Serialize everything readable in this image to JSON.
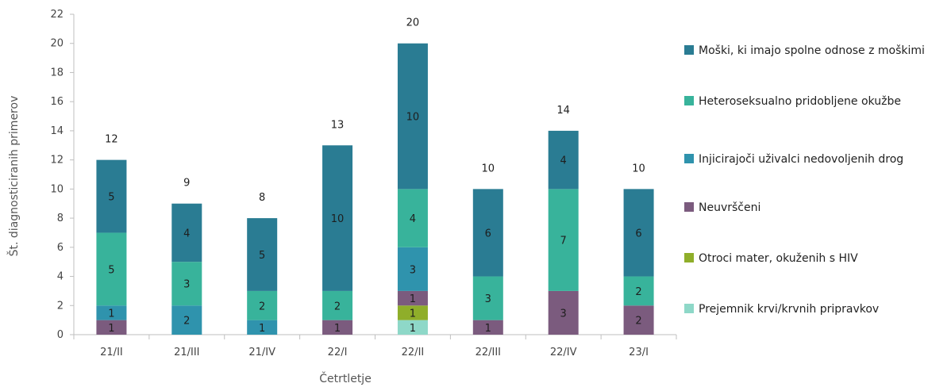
{
  "chart_data": {
    "type": "bar",
    "stacked": true,
    "xlabel": "Četrtletje",
    "ylabel": "Št. diagnosticiranih primerov",
    "ylim": [
      0,
      22
    ],
    "yticks": [
      0,
      2,
      4,
      6,
      8,
      10,
      12,
      14,
      16,
      18,
      20,
      22
    ],
    "grid": false,
    "legend_position": "right",
    "categories": [
      "21/II",
      "21/III",
      "21/IV",
      "22/I",
      "22/II",
      "22/III",
      "22/IV",
      "23/I"
    ],
    "series": [
      {
        "name": "Prejemnik krvi/krvnih pripravkov",
        "color": "#8ed8c8",
        "values": [
          0,
          0,
          0,
          0,
          1,
          0,
          0,
          0
        ]
      },
      {
        "name": "Otroci mater, okuženih s HIV",
        "color": "#8fae2a",
        "values": [
          0,
          0,
          0,
          0,
          1,
          0,
          0,
          0
        ]
      },
      {
        "name": "Neuvrščeni",
        "color": "#7b5b7e",
        "values": [
          1,
          0,
          0,
          1,
          1,
          1,
          3,
          2
        ]
      },
      {
        "name": "Injicirajoči uživalci nedovoljenih drog",
        "color": "#2f93ad",
        "values": [
          1,
          2,
          1,
          0,
          3,
          0,
          0,
          0
        ]
      },
      {
        "name": "Heteroseksualno pridobljene okužbe",
        "color": "#38b39b",
        "values": [
          5,
          3,
          2,
          2,
          4,
          3,
          7,
          2
        ]
      },
      {
        "name": "Moški, ki imajo spolne odnose z moškimi",
        "color": "#2a7c93",
        "values": [
          5,
          4,
          5,
          10,
          10,
          6,
          4,
          6
        ]
      }
    ],
    "totals": [
      12,
      9,
      8,
      13,
      20,
      10,
      14,
      10
    ],
    "legend_order": [
      5,
      4,
      3,
      2,
      1,
      0
    ]
  }
}
